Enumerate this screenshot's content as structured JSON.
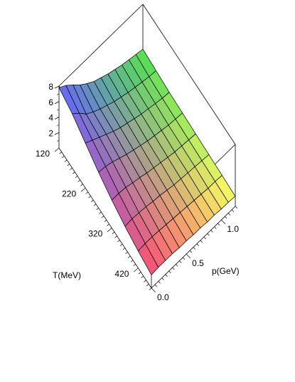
{
  "chart_data": {
    "type": "surface3d",
    "title": "",
    "xlabel": "p(GeV)",
    "ylabel": "T(MeV)",
    "zlabel": "",
    "x_range": [
      0.0,
      1.2
    ],
    "y_range": [
      120,
      470
    ],
    "z_range": [
      0,
      8
    ],
    "x_ticks": [
      "0.0",
      "0.5",
      "1.0"
    ],
    "x_tick_values": [
      0.0,
      0.5,
      1.0
    ],
    "y_ticks": [
      "120",
      "220",
      "320",
      "420"
    ],
    "y_tick_values": [
      120,
      220,
      320,
      420
    ],
    "z_ticks": [
      "2",
      "4",
      "6",
      "8"
    ],
    "z_tick_values": [
      2,
      4,
      6,
      8
    ],
    "p_grid": [
      0.0,
      0.1,
      0.2,
      0.3,
      0.4,
      0.5,
      0.6,
      0.7,
      0.8,
      0.9,
      1.0,
      1.1,
      1.2
    ],
    "T_grid": [
      120,
      170,
      220,
      270,
      320,
      370,
      420,
      470
    ],
    "z_values": [
      [
        7.8,
        7.2,
        6.4,
        5.5,
        4.8,
        4.2,
        3.8,
        3.4,
        3.1,
        2.8,
        2.6,
        2.4,
        2.2
      ],
      [
        7.0,
        6.2,
        5.2,
        4.6,
        4.1,
        3.7,
        3.3,
        3.0,
        2.7,
        2.5,
        2.3,
        2.1,
        2.0
      ],
      [
        5.8,
        5.3,
        4.8,
        4.3,
        3.8,
        3.4,
        3.1,
        2.8,
        2.5,
        2.3,
        2.1,
        1.9,
        1.8
      ],
      [
        4.6,
        4.5,
        4.2,
        3.8,
        3.4,
        3.1,
        2.8,
        2.5,
        2.3,
        2.1,
        1.9,
        1.8,
        1.7
      ],
      [
        3.6,
        3.6,
        3.5,
        3.2,
        3.0,
        2.7,
        2.5,
        2.3,
        2.1,
        1.9,
        1.8,
        1.7,
        1.6
      ],
      [
        2.8,
        2.9,
        2.8,
        2.7,
        2.5,
        2.4,
        2.2,
        2.0,
        1.9,
        1.8,
        1.7,
        1.6,
        1.5
      ],
      [
        2.2,
        2.3,
        2.3,
        2.2,
        2.1,
        2.0,
        1.9,
        1.8,
        1.7,
        1.6,
        1.5,
        1.5,
        1.4
      ],
      [
        1.7,
        1.8,
        1.8,
        1.8,
        1.7,
        1.7,
        1.6,
        1.6,
        1.5,
        1.5,
        1.4,
        1.4,
        1.3
      ]
    ],
    "corner_colors": {
      "lowT_lowp": "#5c6bff",
      "highT_lowp": "#ff4f6e",
      "lowT_highp": "#4fe04f",
      "highT_highp": "#ffff66"
    },
    "grid": false,
    "legend": "none"
  }
}
